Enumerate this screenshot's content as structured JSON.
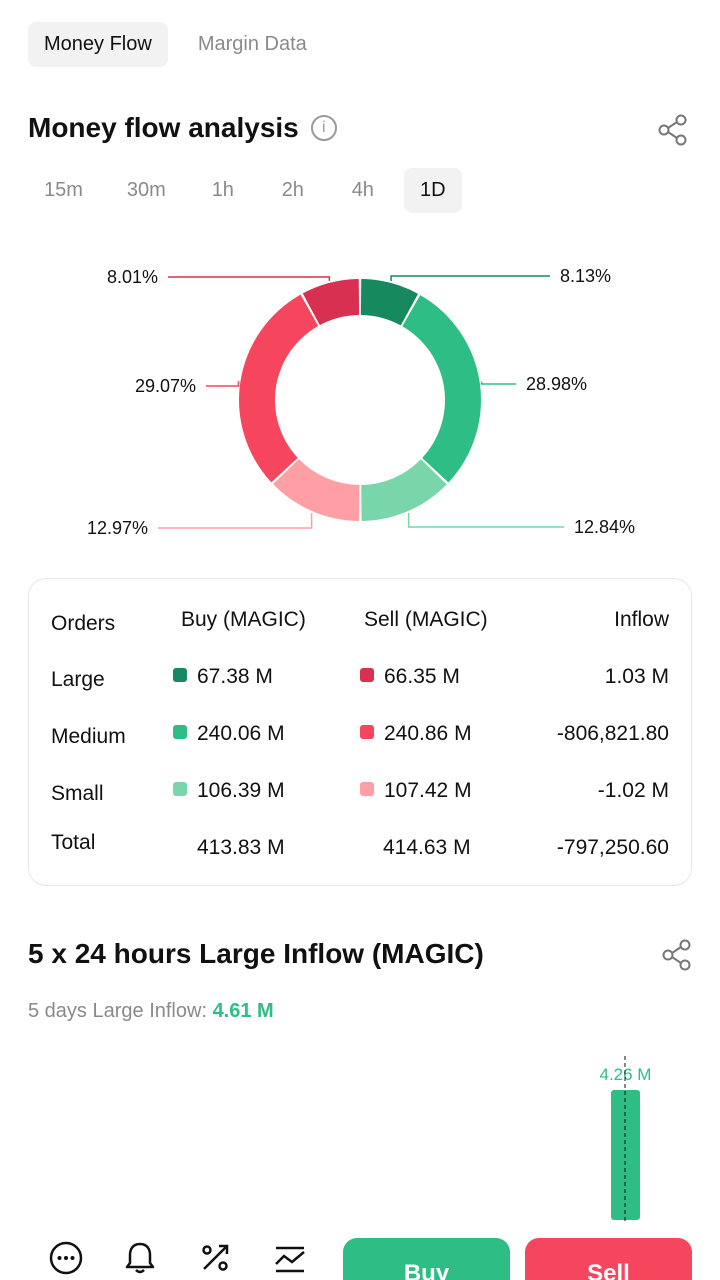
{
  "tabs": [
    {
      "label": "Money Flow",
      "active": true
    },
    {
      "label": "Margin Data",
      "active": false
    }
  ],
  "analysis": {
    "title": "Money flow analysis",
    "timeframes": [
      "15m",
      "30m",
      "1h",
      "2h",
      "4h",
      "1D"
    ],
    "selected_timeframe": "1D"
  },
  "chart_data": {
    "type": "pie",
    "categories": [
      "Buy Large",
      "Buy Medium",
      "Buy Small",
      "Sell Small",
      "Sell Medium",
      "Sell Large"
    ],
    "values": [
      8.13,
      28.98,
      12.84,
      12.97,
      29.07,
      8.01
    ],
    "labels": [
      "8.13%",
      "28.98%",
      "12.84%",
      "12.97%",
      "29.07%",
      "8.01%"
    ],
    "colors": [
      "#168a5e",
      "#2ebd85",
      "#79d6ab",
      "#fe9fa5",
      "#f6465d",
      "#d83050"
    ]
  },
  "table": {
    "headers": {
      "orders": "Orders",
      "buy": "Buy (MAGIC)",
      "sell": "Sell (MAGIC)",
      "inflow": "Inflow"
    },
    "rows": [
      {
        "label": "Large",
        "buy": "67.38 M",
        "sell": "66.35 M",
        "inflow": "1.03 M",
        "buy_color": "#168a5e",
        "sell_color": "#d83050"
      },
      {
        "label": "Medium",
        "buy": "240.06 M",
        "sell": "240.86 M",
        "inflow": "-806,821.80",
        "buy_color": "#2ebd85",
        "sell_color": "#f6465d"
      },
      {
        "label": "Small",
        "buy": "106.39 M",
        "sell": "107.42 M",
        "inflow": "-1.02 M",
        "buy_color": "#79d6ab",
        "sell_color": "#fe9fa5"
      }
    ],
    "total": {
      "label": "Total",
      "buy": "413.83 M",
      "sell": "414.63 M",
      "inflow": "-797,250.60"
    }
  },
  "large_inflow": {
    "title": "5 x 24 hours Large Inflow (MAGIC)",
    "summary_label": "5 days Large Inflow:",
    "summary_value": "4.61 M"
  },
  "bar_chart_data": {
    "type": "bar",
    "values": [
      4.26
    ],
    "labels": [
      "4.26 M"
    ],
    "color": "#2ebd85"
  },
  "bottom": {
    "buy_label": "Buy",
    "sell_label": "Sell",
    "icons": [
      "more-icon",
      "bell-icon",
      "percent-icon",
      "chart-icon"
    ]
  }
}
